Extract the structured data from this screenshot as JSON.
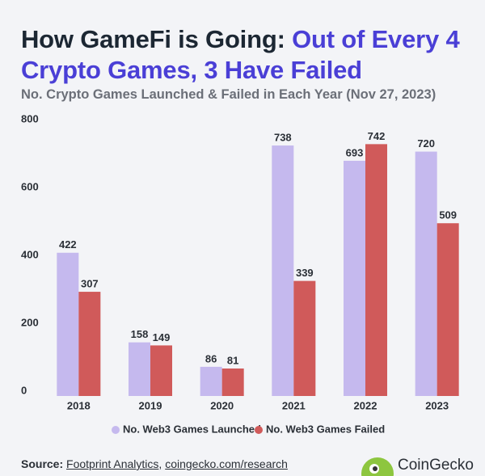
{
  "title_lead": "How GameFi is Going:",
  "title_highlight": "Out of Every 4 Crypto Games, 3 Have Failed",
  "chart_data": {
    "type": "bar",
    "subtitle": "No. Crypto Games Launched & Failed in Each Year (Nov 27, 2023)",
    "categories": [
      "2018",
      "2019",
      "2020",
      "2021",
      "2022",
      "2023"
    ],
    "series": [
      {
        "name": "No. Web3 Games Launched",
        "color": "#c5b9ee",
        "values": [
          422,
          158,
          86,
          738,
          693,
          720
        ]
      },
      {
        "name": "No. Web3 Games Failed",
        "color": "#d05a5a",
        "values": [
          307,
          149,
          81,
          339,
          742,
          509
        ]
      }
    ],
    "ylim": [
      0,
      800
    ],
    "yticks": [
      0,
      200,
      400,
      600,
      800
    ],
    "grid": false
  },
  "footer": {
    "source_label": "Source:",
    "links": [
      "Footprint Analytics",
      "coingecko.com/research"
    ],
    "brand": "CoinGecko"
  }
}
